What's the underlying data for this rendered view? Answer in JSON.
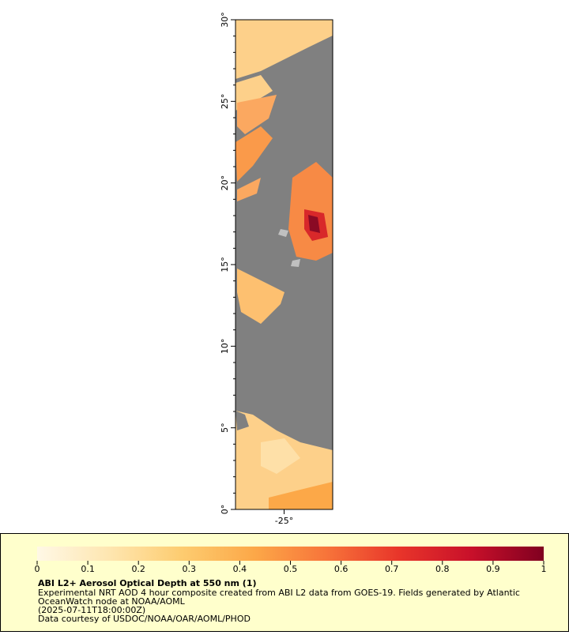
{
  "map": {
    "ylim": [
      0,
      30
    ],
    "xlim": [
      -26.5,
      -23.5
    ],
    "yticks": [
      {
        "value": 0,
        "label": "0°"
      },
      {
        "value": 5,
        "label": "5°"
      },
      {
        "value": 10,
        "label": "10°"
      },
      {
        "value": 15,
        "label": "15°"
      },
      {
        "value": 20,
        "label": "20°"
      },
      {
        "value": 25,
        "label": "25°"
      },
      {
        "value": 30,
        "label": "30°"
      }
    ],
    "minor_yticks": [
      1,
      2,
      3,
      4,
      6,
      7,
      8,
      9,
      11,
      12,
      13,
      14,
      16,
      17,
      18,
      19,
      21,
      22,
      23,
      24,
      26,
      27,
      28,
      29
    ],
    "xticks": [
      {
        "value": -25,
        "label": "-25°"
      }
    ]
  },
  "colorbar": {
    "title": "ABI L2+ Aerosol Optical Depth at 550 nm (1)",
    "lim": [
      0,
      1
    ],
    "ticks": [
      0,
      0.1,
      0.2,
      0.3,
      0.4,
      0.5,
      0.6,
      0.7,
      0.8,
      0.9,
      1
    ],
    "colors": [
      "#fff8e6",
      "#fee6b0",
      "#fdcc70",
      "#fca848",
      "#f7743a",
      "#e8352a",
      "#c8102a",
      "#800020"
    ]
  },
  "notes": [
    "Experimental NRT AOD 4 hour composite created from ABI L2 data from GOES-19. Fields generated by Atlantic",
    "OceanWatch node at NOAA/AOML",
    "(2025-07-11T18:00:00Z)",
    "Data courtesy of USDOC/NOAA/OAR/AOML/PHOD"
  ]
}
